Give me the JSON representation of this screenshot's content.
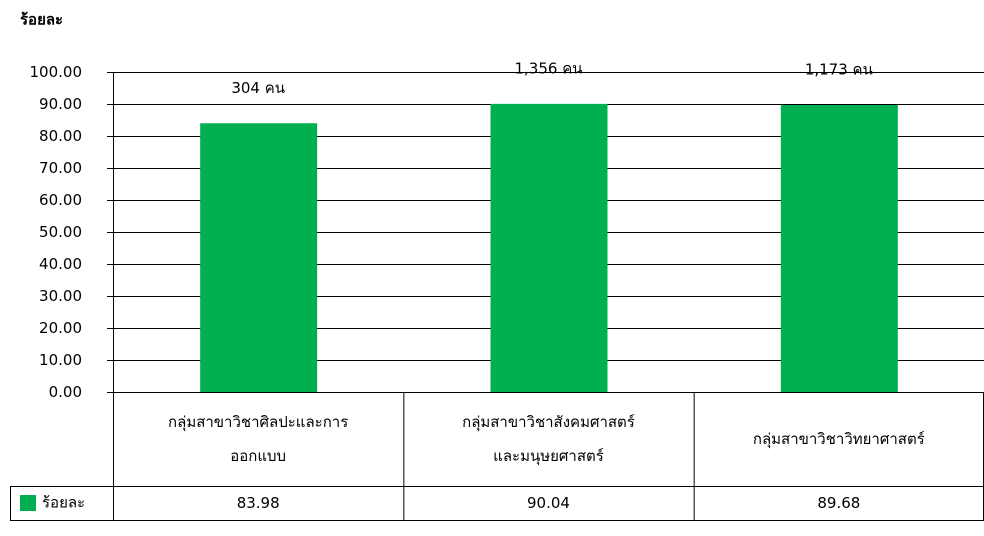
{
  "chart_data": {
    "type": "bar",
    "y_label": "ร้อยละ",
    "categories": [
      "กลุ่มสาขาวิชาศิลปะและการ\nออกแบบ",
      "กลุ่มสาขาวิชาสังคมศาสตร์\nและมนุษยศาสตร์",
      "กลุ่มสาขาวิชาวิทยาศาสตร์"
    ],
    "series": [
      {
        "name": "ร้อยละ",
        "color": "#00b050",
        "values": [
          83.98,
          90.04,
          89.68
        ]
      }
    ],
    "annotations": [
      "304 คน",
      "1,356 คน",
      "1,173 คน"
    ],
    "ylim": [
      0,
      100
    ],
    "yticks": [
      {
        "value": 0,
        "label": "0.00"
      },
      {
        "value": 10,
        "label": "10.00"
      },
      {
        "value": 20,
        "label": "20.00"
      },
      {
        "value": 30,
        "label": "30.00"
      },
      {
        "value": 40,
        "label": "40.00"
      },
      {
        "value": 50,
        "label": "50.00"
      },
      {
        "value": 60,
        "label": "60.00"
      },
      {
        "value": 70,
        "label": "70.00"
      },
      {
        "value": 80,
        "label": "80.00"
      },
      {
        "value": 90,
        "label": "90.00"
      },
      {
        "value": 100,
        "label": "100.00"
      }
    ],
    "grid": true
  }
}
